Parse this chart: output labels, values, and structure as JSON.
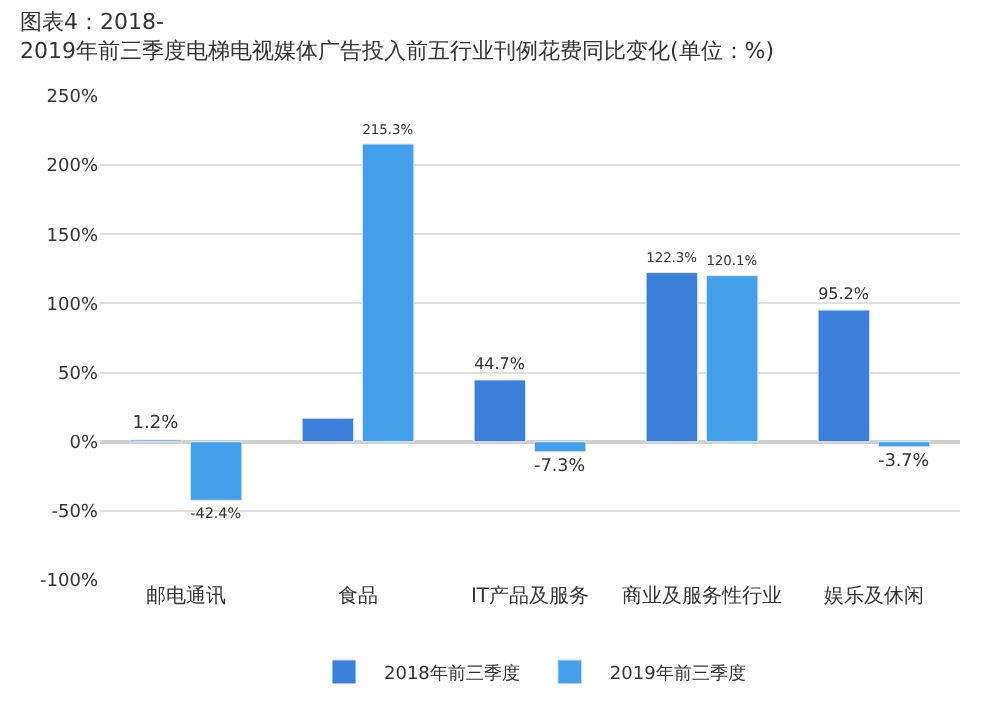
{
  "chart_data": {
    "type": "bar",
    "title": "图表4：2018-2019年前三季度电梯电视媒体广告投入前五行业刊例花费同比变化(单位：%)",
    "categories": [
      "邮电通讯",
      "食品",
      "IT产品及服务",
      "商业及服务性行业",
      "娱乐及休闲"
    ],
    "series": [
      {
        "name": "2018年前三季度",
        "color": "#3d80dc",
        "values": [
          1.2,
          17,
          44.7,
          122.3,
          95.2
        ],
        "value_labels": [
          "1.2%",
          null,
          "44.7%",
          "122.3%",
          "95.2%"
        ]
      },
      {
        "name": "2019年前三季度",
        "color": "#44a0ea",
        "values": [
          -42.4,
          215.3,
          -7.3,
          120.1,
          -3.7
        ],
        "value_labels": [
          "-42.4%",
          "215.3%",
          "-7.3%",
          "120.1%",
          "-3.7%"
        ]
      }
    ],
    "ylim": [
      -100,
      250
    ],
    "yticks": [
      {
        "value": -100,
        "label": "-100%"
      },
      {
        "value": -50,
        "label": "-50%"
      },
      {
        "value": 0,
        "label": "0%"
      },
      {
        "value": 50,
        "label": "50%"
      },
      {
        "value": 100,
        "label": "100%"
      },
      {
        "value": 150,
        "label": "150%"
      },
      {
        "value": 200,
        "label": "200%"
      },
      {
        "value": 250,
        "label": "250%"
      }
    ],
    "grid": "y",
    "legend": "bottom"
  }
}
